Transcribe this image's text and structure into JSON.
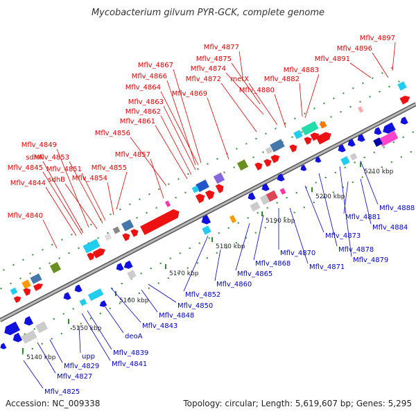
{
  "title": "Mycobacterium gilvum PYR-GCK, complete genome",
  "footer": {
    "accession": "Accession: NC_009338",
    "topology": "Topology: circular; Length: 5,619,607 bp; Genes: 5,295"
  },
  "colors": {
    "top_strand_label": "#e00000",
    "bottom_strand_label": "#0000cc",
    "backbone": "#888888",
    "tick": "#2a8a2a"
  },
  "ticks": [
    "5140 kbp",
    "5150 kbp",
    "5160 kbp",
    "5170 kbp",
    "5180 kbp",
    "5190 kbp",
    "5200 kbp",
    "5210 kbp"
  ],
  "top_labels": [
    "Mflv_4897",
    "Mflv_4896",
    "Mflv_4891",
    "Mflv_4877",
    "Mflv_4875",
    "Mflv_4874",
    "Mflv_4867",
    "Mflv_4883",
    "Mflv_4866",
    "Mflv_4872",
    "metX",
    "Mflv_4882",
    "Mflv_4864",
    "Mflv_4880",
    "Mflv_4869",
    "Mflv_4863",
    "Mflv_4862",
    "Mflv_4861",
    "Mflv_4856",
    "Mflv_4857",
    "Mflv_4849",
    "Mflv_4853",
    "sdhA",
    "Mflv_4851",
    "Mflv_4855",
    "Mflv_4845",
    "sdhB",
    "Mflv_4854",
    "Mflv_4844",
    "Mflv_4840"
  ],
  "bottom_labels": [
    "Mflv_4888",
    "Mflv_4881",
    "Mflv_4884",
    "Mflv_4873",
    "Mflv_4878",
    "Mflv_4879",
    "Mflv_4870",
    "Mflv_4871",
    "Mflv_4868",
    "Mflv_4865",
    "Mflv_4860",
    "Mflv_4852",
    "Mflv_4850",
    "Mflv_4848",
    "Mflv_4843",
    "deoA",
    "Mflv_4839",
    "Mflv_4841",
    "upp",
    "Mflv_4829",
    "Mflv_4827",
    "Mflv_4825"
  ]
}
